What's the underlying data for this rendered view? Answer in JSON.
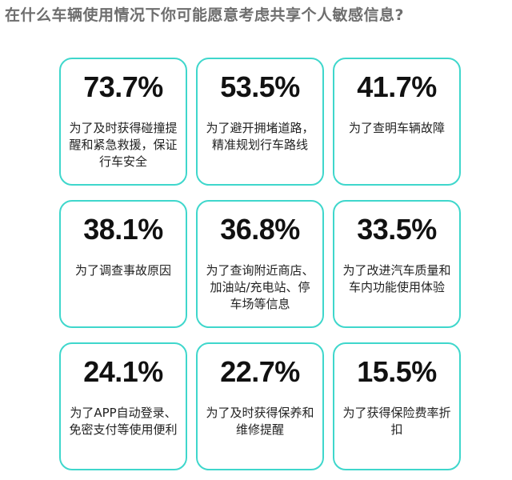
{
  "chart_data": {
    "type": "table",
    "title": "在什么车辆使用情况下你可能愿意考虑共享个人敏感信息?",
    "items": [
      {
        "value": "73.7%",
        "label": "为了及时获得碰撞提醒和紧急救援，保证行车安全"
      },
      {
        "value": "53.5%",
        "label": "为了避开拥堵道路，精准规划行车路线"
      },
      {
        "value": "41.7%",
        "label": "为了查明车辆故障"
      },
      {
        "value": "38.1%",
        "label": "为了调查事故原因"
      },
      {
        "value": "36.8%",
        "label": "为了查询附近商店、加油站/充电站、停车场等信息"
      },
      {
        "value": "33.5%",
        "label": "为了改进汽车质量和车内功能使用体验"
      },
      {
        "value": "24.1%",
        "label": "为了APP自动登录、免密支付等使用便利"
      },
      {
        "value": "22.7%",
        "label": "为了及时获得保养和维修提醒"
      },
      {
        "value": "15.5%",
        "label": "为了获得保险费率折扣"
      }
    ]
  },
  "colors": {
    "card_border": "#3fd7cc",
    "title": "#6e6e6e",
    "value": "#111111"
  }
}
